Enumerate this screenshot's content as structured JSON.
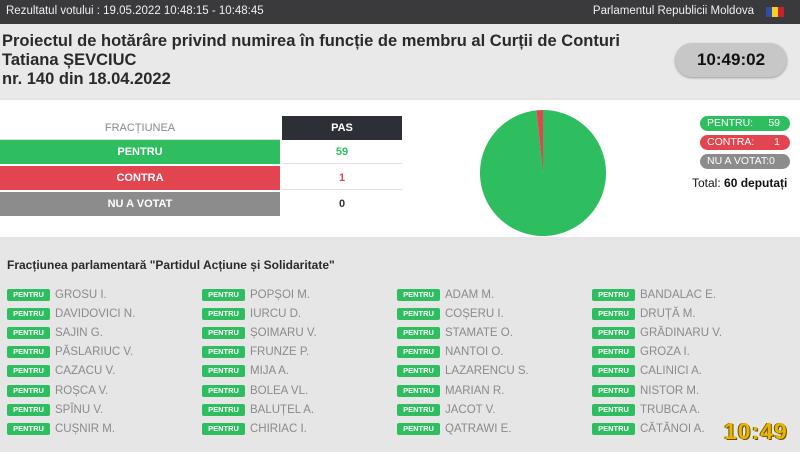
{
  "topbar": {
    "left_text": "Rezultatul votului : 19.05.2022 10:48:15 - 10:48:45",
    "right_text": "Parlamentul Republicii Moldova"
  },
  "header": {
    "title_line1": "Proiectul de hotărâre privind numirea în funcție de membru al Curții de Conturi",
    "title_line2": "Tatiana ȘEVCIUC",
    "title_line3": "nr. 140 din 18.04.2022",
    "clock": "10:49:02"
  },
  "results_table": {
    "col_faction": "FRACȚIUNEA",
    "col_party": "PAS",
    "rows": [
      {
        "label": "PENTRU",
        "value": "59"
      },
      {
        "label": "CONTRA",
        "value": "1"
      },
      {
        "label": "NU A VOTAT",
        "value": "0"
      }
    ]
  },
  "chart_data": {
    "type": "pie",
    "categories": [
      "PENTRU",
      "CONTRA",
      "NU A VOTAT"
    ],
    "values": [
      59,
      1,
      0
    ],
    "colors": [
      "#2ebd5f",
      "#e2454f",
      "#8c8c8c"
    ]
  },
  "legend": {
    "items": [
      {
        "label": "PENTRU:",
        "value": "59",
        "color": "#2ebd5f"
      },
      {
        "label": "CONTRA:",
        "value": "1",
        "color": "#e2454f"
      },
      {
        "label": "NU A VOTAT:",
        "value": "0",
        "color": "#8c8c8c"
      }
    ],
    "total_label": "Total:",
    "total_value": "60 deputați"
  },
  "faction": {
    "title": "Fracțiunea parlamentară \"Partidul Acțiune și Solidaritate\"",
    "badge_label": "PENTRU",
    "columns": [
      [
        "GROSU I.",
        "DAVIDOVICI N.",
        "SAJIN G.",
        "PĂSLARIUC V.",
        "CAZACU V.",
        "ROȘCA V.",
        "SPÎNU V.",
        "CUȘNIR M."
      ],
      [
        "POPȘOI M.",
        "IURCU D.",
        "ȘOIMARU V.",
        "FRUNZE P.",
        "MIJA A.",
        "BOLEA VL.",
        "BALUȚEL A.",
        "CHIRIAC I."
      ],
      [
        "ADAM M.",
        "COȘERU I.",
        "STAMATE O.",
        "NANTOI O.",
        "LAZARENCU S.",
        "MARIAN R.",
        "JACOT V.",
        "QATRAWI E."
      ],
      [
        "BANDALAC E.",
        "DRUȚĂ M.",
        "GRĂDINARU V.",
        "GROZA I.",
        "CALINICI A.",
        "NISTOR M.",
        "TRUBCA A.",
        "CĂTĂNOI A."
      ]
    ]
  },
  "overlay_clock": "10:49",
  "colors": {
    "pentru": "#2ebd5f",
    "contra": "#e2454f",
    "absent": "#8c8c8c",
    "clock_overlay": "#e8b400"
  }
}
